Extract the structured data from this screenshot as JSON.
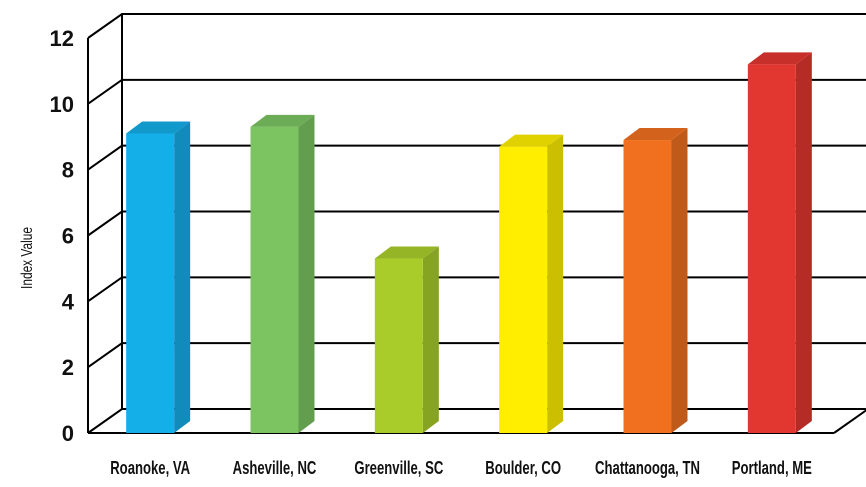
{
  "chart_data": {
    "type": "bar",
    "title": "",
    "xlabel": "",
    "ylabel": "Index Value",
    "ylim": [
      0,
      12
    ],
    "yticks": [
      "0",
      "2",
      "4",
      "6",
      "8",
      "10",
      "12"
    ],
    "grid": true,
    "categories": [
      "Roanoke, VA",
      "Asheville, NC",
      "Greenville, SC",
      "Boulder, CO",
      "Chattanooga, TN",
      "Portland, ME"
    ],
    "values": [
      9.1,
      9.3,
      5.3,
      8.7,
      8.9,
      11.2
    ],
    "colors": [
      "#14aee8",
      "#7cc462",
      "#a9cc2b",
      "#ffee00",
      "#f07020",
      "#e23630"
    ]
  }
}
